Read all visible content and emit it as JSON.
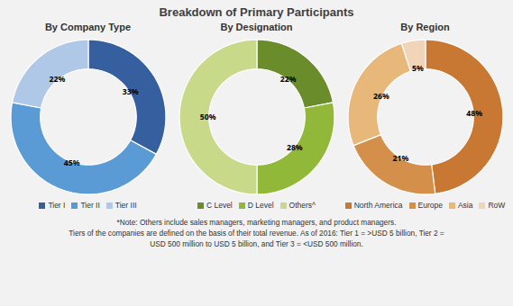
{
  "title": "Breakdown of Primary Participants",
  "annotations": [
    "*Note: Others include sales managers, marketing managers, and product managers.",
    "Tiers of the companies are defined on the basis of their total revenue. As of 2016: Tier 1 = >USD 5 billion, Tier 2 =",
    "USD 500 million to USD 5 billion, and Tier 3 = <USD 500 million."
  ],
  "chart_data": [
    {
      "type": "pie",
      "title": "By Company Type",
      "categories": [
        "Tier I",
        "Tier II",
        "Tier III"
      ],
      "values": [
        33,
        45,
        22
      ],
      "value_labels": [
        "33%",
        "45%",
        "22%"
      ],
      "colors": [
        "#355f9e",
        "#5b9bd5",
        "#b0c8e8"
      ],
      "data_labels": true,
      "legend": "bottom"
    },
    {
      "type": "pie",
      "title": "By Designation",
      "categories": [
        "C Level",
        "D Level",
        "Others^"
      ],
      "values": [
        22,
        28,
        50
      ],
      "value_labels": [
        "22%",
        "28%",
        "50%"
      ],
      "colors": [
        "#6a8c2a",
        "#92b83a",
        "#c8d98a"
      ],
      "data_labels": true,
      "legend": "bottom"
    },
    {
      "type": "pie",
      "title": "By Region",
      "categories": [
        "North America",
        "Europe",
        "Asia",
        "RoW"
      ],
      "values": [
        48,
        21,
        26,
        5
      ],
      "value_labels": [
        "48%",
        "21%",
        "26%",
        "5%"
      ],
      "colors": [
        "#c87832",
        "#d4904a",
        "#e8b87a",
        "#f2d4b8"
      ],
      "data_labels": true,
      "legend": "bottom"
    }
  ]
}
